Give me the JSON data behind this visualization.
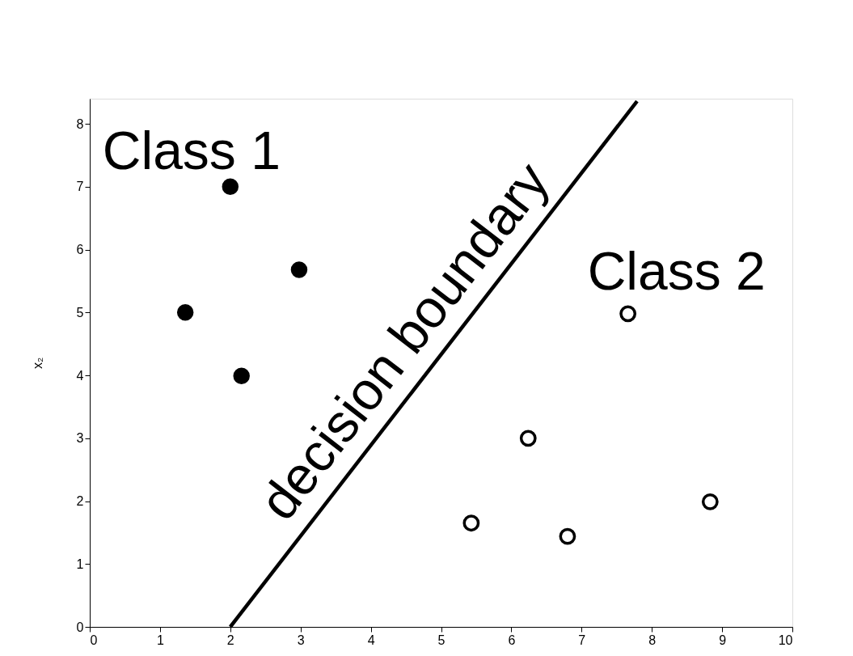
{
  "chart_data": {
    "type": "scatter",
    "ylabel": "x₂",
    "xlim": [
      0,
      10
    ],
    "xticks": [
      0,
      1,
      2,
      3,
      4,
      5,
      6,
      7,
      8,
      9,
      10
    ],
    "ylim": [
      0,
      8.4
    ],
    "yticks": [
      0,
      1,
      2,
      3,
      4,
      5,
      6,
      7,
      8
    ],
    "grid": false,
    "annotations": [
      {
        "text": "decision boundary",
        "x": 4.9,
        "y": 4.18
      }
    ],
    "series": [
      {
        "name": "Class 1",
        "color": "#000000",
        "marker": "circle",
        "x": [
          2,
          1.36,
          2.98,
          2.16
        ],
        "values": [
          7,
          5,
          5.68,
          3.99
        ]
      },
      {
        "name": "Class 2",
        "color": "#000000",
        "marker": "circle",
        "x": [
          7.66,
          6.24,
          5.43,
          6.8,
          8.83
        ],
        "values": [
          4.98,
          3,
          1.65,
          1.44,
          1.99
        ]
      },
      {
        "type": "line",
        "color": "#000000",
        "line_style": "solid",
        "x": [
          2,
          7.79
        ],
        "values": [
          0,
          8.36
        ]
      }
    ]
  }
}
